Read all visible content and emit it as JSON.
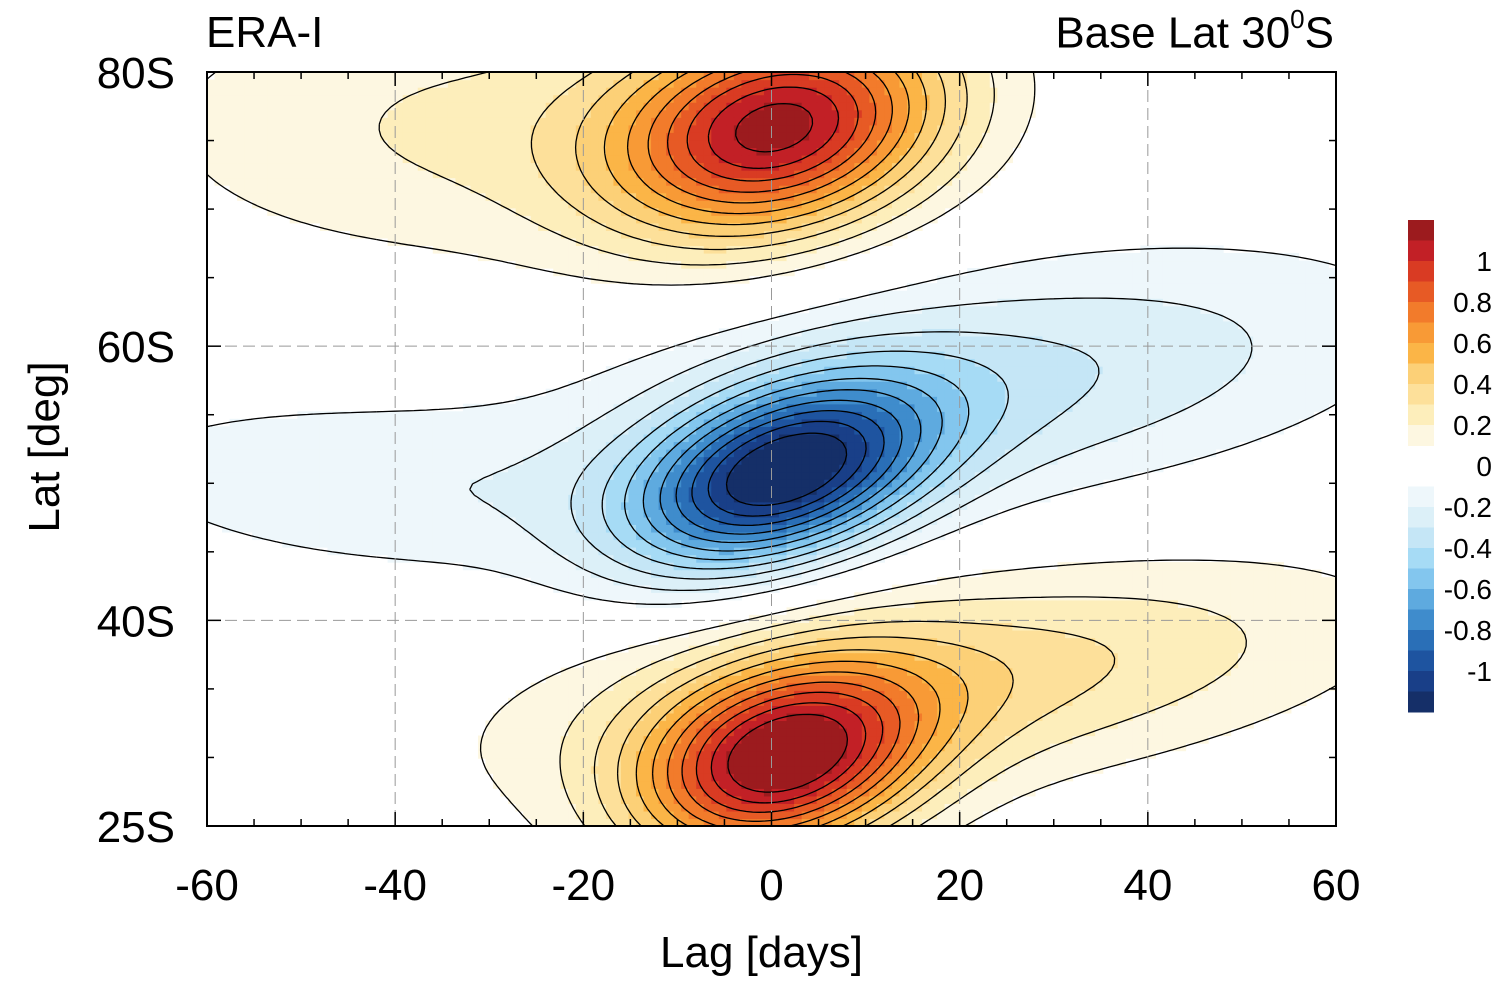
{
  "panel_label": "ERA-I",
  "base_label_prefix": "Base Lat 30",
  "base_label_super": "0",
  "base_label_suffix": "S",
  "chart_data": {
    "type": "heatmap",
    "title": "",
    "xlabel": "Lag [days]",
    "ylabel": "Lat [deg]",
    "xlim": [
      -60,
      60
    ],
    "ylim": [
      25,
      80
    ],
    "x_ticks": [
      -60,
      -40,
      -20,
      0,
      20,
      40,
      60
    ],
    "x_tick_labels": [
      "-60",
      "-40",
      "-20",
      "0",
      "20",
      "40",
      "60"
    ],
    "y_ticks": [
      25,
      40,
      60,
      80
    ],
    "y_tick_labels": [
      "25S",
      "40S",
      "60S",
      "80S"
    ],
    "grid": true,
    "colorbar": {
      "levels": [
        -1.1,
        -1.0,
        -0.9,
        -0.8,
        -0.7,
        -0.6,
        -0.5,
        -0.4,
        -0.3,
        -0.2,
        -0.1,
        0.1,
        0.2,
        0.3,
        0.4,
        0.5,
        0.6,
        0.7,
        0.8,
        0.9,
        1.0,
        1.1
      ],
      "tick_values": [
        1,
        0.8,
        0.6,
        0.4,
        0.2,
        0,
        -0.2,
        -0.4,
        -0.6,
        -0.8,
        -1
      ],
      "tick_labels": [
        "1",
        "0.8",
        "0.6",
        "0.4",
        "0.2",
        "0",
        "-0.2",
        "-0.4",
        "-0.6",
        "-0.8",
        "-1"
      ],
      "pos_colors": [
        "#fdf7e1",
        "#fdeebb",
        "#fde09a",
        "#fcd077",
        "#fbb547",
        "#f89a36",
        "#f27b2b",
        "#e75a25",
        "#d93b23",
        "#c22026",
        "#9c1b1e"
      ],
      "neg_colors": [
        "#eef7fb",
        "#dcf0f8",
        "#c5e6f6",
        "#a6dbf5",
        "#83c6ee",
        "#5eaadf",
        "#3f8ccc",
        "#2a6fb7",
        "#1e54a0",
        "#193f88",
        "#152f68"
      ],
      "placement": "right"
    },
    "features": [
      {
        "name": "high-latitude positive lobe",
        "sign": "positive",
        "peak_value": 1.05,
        "peak_lag": 1,
        "peak_lat": 76
      },
      {
        "name": "mid-latitude negative lobe",
        "sign": "negative",
        "peak_value": -1.05,
        "peak_lag": 1,
        "peak_lat": 50
      },
      {
        "name": "base-latitude positive lobe",
        "sign": "positive",
        "peak_value": 1.05,
        "peak_lag": 1,
        "peak_lat": 29
      }
    ]
  }
}
